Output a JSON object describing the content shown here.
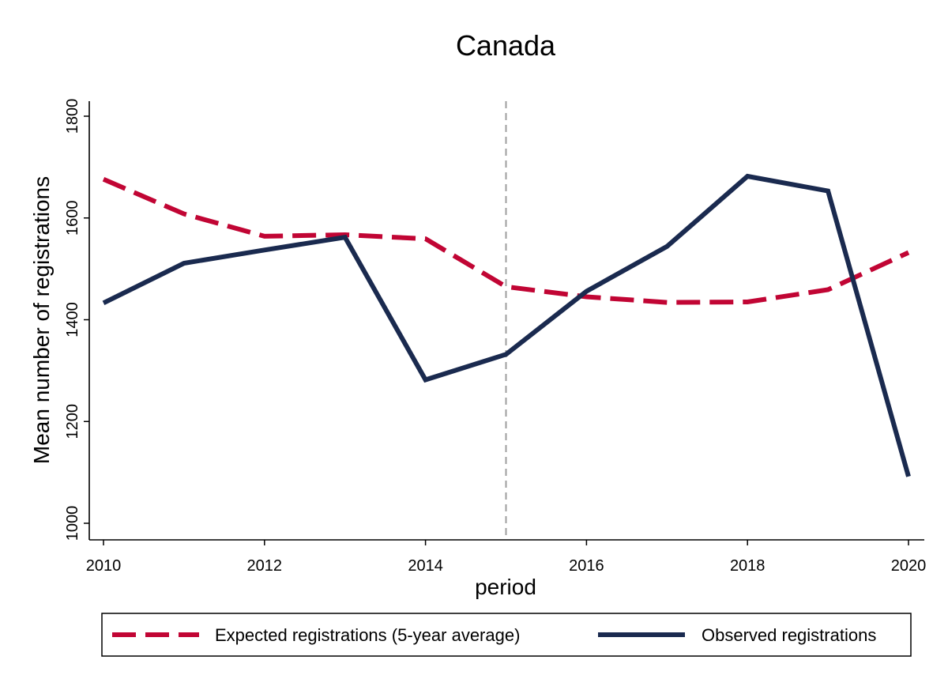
{
  "chart_data": {
    "type": "line",
    "title": "Canada",
    "xlabel": "period",
    "ylabel": "Mean number of registrations",
    "x": [
      2010,
      2011,
      2012,
      2013,
      2014,
      2015,
      2016,
      2017,
      2018,
      2019,
      2020
    ],
    "xticks": [
      2010,
      2012,
      2014,
      2016,
      2018,
      2020
    ],
    "yticks": [
      1000,
      1200,
      1400,
      1600,
      1800
    ],
    "xlim": [
      2010,
      2020
    ],
    "ylim": [
      970,
      1830
    ],
    "reference_line": {
      "x": 2015,
      "style": "dashed",
      "color": "#9e9e9e"
    },
    "grid": false,
    "legend_position": "bottom",
    "series": [
      {
        "name": "Expected registrations (5-year average)",
        "style": "dashed",
        "color": "#c10534",
        "values": [
          1676,
          1608,
          1564,
          1567,
          1559,
          1465,
          1445,
          1434,
          1435,
          1459,
          1532
        ]
      },
      {
        "name": "Observed registrations",
        "style": "solid",
        "color": "#1a2a4f",
        "values": [
          1433,
          1511,
          1537,
          1562,
          1282,
          1332,
          1456,
          1544,
          1682,
          1653,
          1092
        ]
      }
    ]
  }
}
